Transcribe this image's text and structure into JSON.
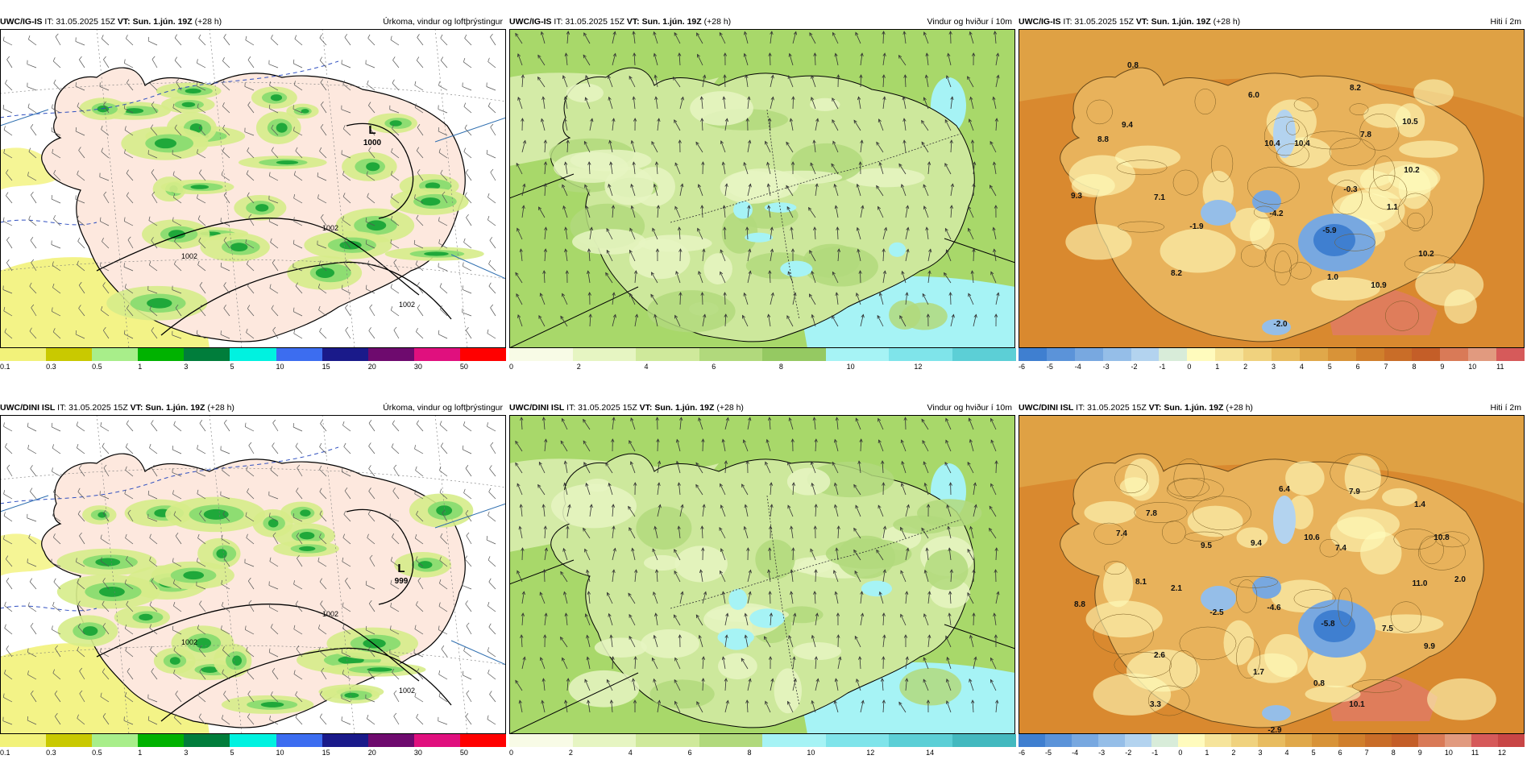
{
  "panels": [
    {
      "model": "UWC/IG-IS",
      "it": "IT: 31.05.2025 15Z",
      "vt": "VT: Sun. 1.jún. 19Z",
      "lead": "(+28 h)",
      "title": "Úrkoma, vindur og loftþrýstingur",
      "type": "precip",
      "low": "L",
      "lowval": "1000",
      "iso": [
        "1002",
        "1002",
        "1002"
      ]
    },
    {
      "model": "UWC/IG-IS",
      "it": "IT: 31.05.2025 15Z",
      "vt": "VT: Sun. 1.jún. 19Z",
      "lead": "(+28 h)",
      "title": "Vindur og hviður í 10m",
      "type": "wind"
    },
    {
      "model": "UWC/IG-IS",
      "it": "IT: 31.05.2025 15Z",
      "vt": "VT: Sun. 1.jún. 19Z",
      "lead": "(+28 h)",
      "title": "Hiti í 2m",
      "type": "temp",
      "temps": [
        "0.8",
        "9.4",
        "6.0",
        "8.2",
        "8.8",
        "10.4",
        "10.4",
        "7.8",
        "10.5",
        "10.2",
        "9.3",
        "7.1",
        "-0.3",
        "1.1",
        "-1.9",
        "-4.2",
        "-5.9",
        "10.2",
        "8.2",
        "1.0",
        "10.9",
        "-2.0"
      ]
    },
    {
      "model": "UWC/DINI ISL",
      "it": "IT: 31.05.2025 15Z",
      "vt": "VT: Sun. 1.jún. 19Z",
      "lead": "(+28 h)",
      "title": "Úrkoma, vindur og loftþrýstingur",
      "type": "precip",
      "low": "L",
      "lowval": "999",
      "iso": [
        "1002",
        "1002",
        "1002"
      ]
    },
    {
      "model": "UWC/DINI ISL",
      "it": "IT: 31.05.2025 15Z",
      "vt": "VT: Sun. 1.jún. 19Z",
      "lead": "(+28 h)",
      "title": "Vindur og hviður í 10m",
      "type": "wind"
    },
    {
      "model": "UWC/DINI ISL",
      "it": "IT: 31.05.2025 15Z",
      "vt": "VT: Sun. 1.jún. 19Z",
      "lead": "(+28 h)",
      "title": "Hiti í 2m",
      "type": "temp",
      "temps": [
        "6.4",
        "7.9",
        "1.4",
        "7.8",
        "7.4",
        "9.5",
        "9.4",
        "10.6",
        "10.8",
        "7.4",
        "8.1",
        "2.1",
        "11.0",
        "2.0",
        "8.8",
        "-2.5",
        "-4.6",
        "-5.8",
        "7.5",
        "9.9",
        "2.6",
        "1.7",
        "0.8",
        "3.3",
        "10.1",
        "-2.9"
      ]
    }
  ],
  "scales": {
    "precip": {
      "colors": [
        "#f2f27a",
        "#c9c900",
        "#a8ee8a",
        "#00b200",
        "#007d3b",
        "#00f2e0",
        "#3c6df0",
        "#1a1a8a",
        "#6e0a6e",
        "#e0107e",
        "#ff0000"
      ],
      "ticks": [
        "0.1",
        "0.3",
        "0.5",
        "1",
        "3",
        "5",
        "10",
        "15",
        "20",
        "30",
        "50"
      ]
    },
    "wind_top": {
      "colors": [
        "#f8fbe6",
        "#e6f5c2",
        "#cfe99b",
        "#b1d97c",
        "#95c962",
        "#a6f3f5",
        "#7fe4ea",
        "#5ccfd6"
      ],
      "ticks": [
        "0",
        "2",
        "4",
        "6",
        "8",
        "10",
        "12"
      ]
    },
    "wind_bottom": {
      "colors": [
        "#f8fbe6",
        "#e6f5c2",
        "#cfe99b",
        "#b1d97c",
        "#a6f3f5",
        "#7fe4ea",
        "#5ccfd6",
        "#43b9bf"
      ],
      "ticks": [
        "0",
        "2",
        "4",
        "6",
        "8",
        "10",
        "12",
        "14"
      ]
    },
    "temp_top": {
      "colors": [
        "#3f7fd0",
        "#5b93d9",
        "#78a8e0",
        "#95bee8",
        "#b3d3ef",
        "#d8ecd9",
        "#fffbbd",
        "#f6e49b",
        "#f0d27e",
        "#e8bc60",
        "#e0a84a",
        "#d89338",
        "#d07f2c",
        "#c96d28",
        "#c45e28",
        "#d97a57",
        "#e19a7f",
        "#d65a5a"
      ],
      "ticks": [
        "-6",
        "-5",
        "-4",
        "-3",
        "-2",
        "-1",
        "0",
        "1",
        "2",
        "3",
        "4",
        "5",
        "6",
        "7",
        "8",
        "9",
        "10",
        "11"
      ]
    },
    "temp_bottom": {
      "colors": [
        "#3f7fd0",
        "#5b93d9",
        "#78a8e0",
        "#95bee8",
        "#b3d3ef",
        "#d8ecd9",
        "#fffbbd",
        "#f6e49b",
        "#f0d27e",
        "#e8bc60",
        "#e0a84a",
        "#d89338",
        "#d07f2c",
        "#c96d28",
        "#c45e28",
        "#d97a57",
        "#e19a7f",
        "#d65a5a",
        "#c84646"
      ],
      "ticks": [
        "-6",
        "-5",
        "-4",
        "-3",
        "-2",
        "-1",
        "0",
        "1",
        "2",
        "3",
        "4",
        "5",
        "6",
        "7",
        "8",
        "9",
        "10",
        "11",
        "12"
      ]
    }
  },
  "colors": {
    "ocean_precip": "#ffffff",
    "land_precip": "#fde8de",
    "ocean_wind": "#a8d86a",
    "land_wind": "#cde89c",
    "ocean_temp": "#d9892f",
    "land_temp": "#e8b25b"
  }
}
